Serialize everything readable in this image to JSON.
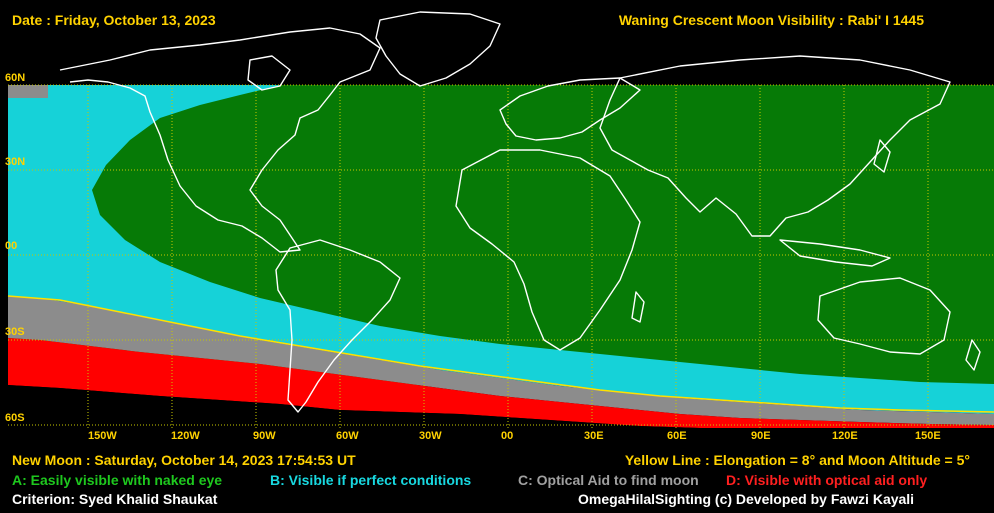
{
  "header": {
    "date": "Date : Friday, October 13, 2023",
    "title": "Waning Crescent Moon Visibility : Rabi' I 1445"
  },
  "latitude_labels": [
    "60N",
    "30N",
    "00",
    "30S",
    "60S"
  ],
  "longitude_labels": [
    "150W",
    "120W",
    "90W",
    "60W",
    "30W",
    "00",
    "30E",
    "60E",
    "90E",
    "120E",
    "150E"
  ],
  "footer": {
    "new_moon": "New Moon : Saturday, October 14, 2023  17:54:53  UT",
    "yellow_line": "Yellow Line : Elongation = 8° and Moon Altitude = 5°",
    "legend": {
      "a": "A: Easily visible with naked eye",
      "b": "B: Visible if perfect conditions",
      "c": "C: Optical Aid to find moon",
      "d": "D: Visible with optical aid only"
    },
    "criterion": "Criterion: Syed Khalid Shaukat",
    "credit": "OmegaHilalSighting  (c)  Developed by Fawzi Kayali"
  },
  "colors": {
    "zone_a": "#067a06",
    "zone_b": "#16d2d8",
    "zone_c": "#8c8c8c",
    "zone_d": "#ff0000",
    "grid": "#c8c800",
    "label": "#ffd200",
    "coast": "#ffffff",
    "text_b": "#18d8e0",
    "text_c": "#a0a0a0",
    "text_d": "#ff2020"
  }
}
